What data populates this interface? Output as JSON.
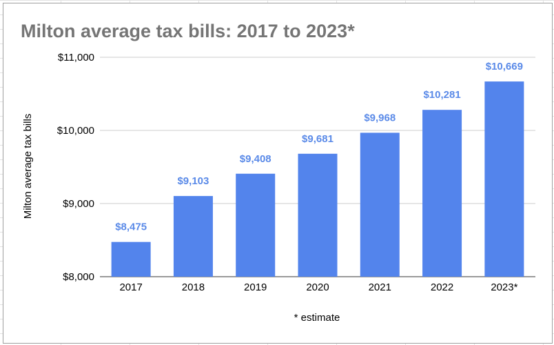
{
  "chart_data": {
    "type": "bar",
    "title": "Milton average tax bills: 2017 to 2023*",
    "xlabel": "* estimate",
    "ylabel": "Milton average tax bills",
    "categories": [
      "2017",
      "2018",
      "2019",
      "2020",
      "2021",
      "2022",
      "2023*"
    ],
    "values": [
      8475,
      9103,
      9408,
      9681,
      9968,
      10281,
      10669
    ],
    "data_labels": [
      "$8,475",
      "$9,103",
      "$9,408",
      "$9,681",
      "$9,968",
      "$10,281",
      "$10,669"
    ],
    "ylim": [
      8000,
      11000
    ],
    "yticks": [
      8000,
      9000,
      10000,
      11000
    ],
    "ytick_labels": [
      "$8,000",
      "$9,000",
      "$10,000",
      "$11,000"
    ],
    "grid": true,
    "legend": "none",
    "colors": {
      "bar": "#5384ec",
      "label": "#5a8ae8",
      "title": "#757575"
    }
  }
}
